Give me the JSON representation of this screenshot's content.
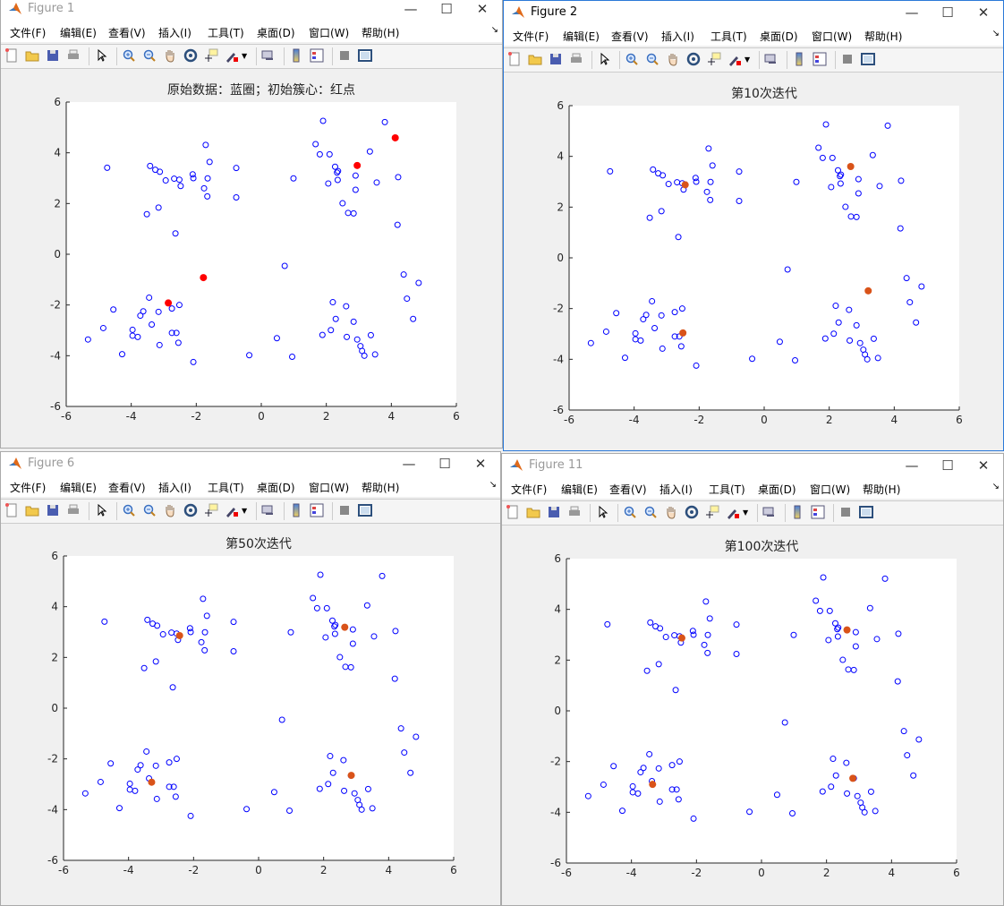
{
  "menu": [
    "文件(F)",
    "编辑(E)",
    "查看(V)",
    "插入(I)",
    "工具(T)",
    "桌面(D)",
    "窗口(W)",
    "帮助(H)"
  ],
  "toolbar_icons": [
    "new-file-icon",
    "open-folder-icon",
    "save-icon",
    "print-icon",
    "|",
    "pointer-icon",
    "|",
    "zoom-in-icon",
    "zoom-out-icon",
    "pan-hand-icon",
    "rotate-3d-icon",
    "data-cursor-icon",
    "brush-icon",
    "|",
    "link-plot-icon",
    "|",
    "colorbar-icon",
    "legend-icon",
    "|",
    "hide-plot-tools-icon",
    "show-plot-tools-icon"
  ],
  "axes": {
    "xlim": [
      -6,
      6
    ],
    "ylim": [
      -6,
      6
    ],
    "xticks": [
      "-6",
      "-4",
      "-2",
      "0",
      "2",
      "4",
      "6"
    ],
    "yticks": [
      "-6",
      "-4",
      "-2",
      "0",
      "2",
      "4",
      "6"
    ]
  },
  "colors": {
    "data_points": "#0000ff",
    "initial_centroids": "#ff0000",
    "centroids": "#d95319"
  },
  "points": [
    [
      -4.74,
      3.41
    ],
    [
      -1.71,
      4.31
    ],
    [
      -1.59,
      3.64
    ],
    [
      -0.77,
      3.4
    ],
    [
      -3.42,
      3.48
    ],
    [
      -3.26,
      3.33
    ],
    [
      -3.12,
      3.25
    ],
    [
      -2.94,
      2.91
    ],
    [
      -2.68,
      2.98
    ],
    [
      -2.52,
      2.94
    ],
    [
      -2.48,
      2.69
    ],
    [
      -2.11,
      3.15
    ],
    [
      -2.09,
      3.0
    ],
    [
      -1.65,
      2.99
    ],
    [
      -1.76,
      2.6
    ],
    [
      -1.66,
      2.28
    ],
    [
      -0.77,
      2.24
    ],
    [
      -3.16,
      1.84
    ],
    [
      -3.52,
      1.58
    ],
    [
      -2.64,
      0.82
    ],
    [
      1.9,
      5.26
    ],
    [
      3.8,
      5.21
    ],
    [
      1.67,
      4.34
    ],
    [
      1.8,
      3.94
    ],
    [
      2.1,
      3.94
    ],
    [
      3.34,
      4.05
    ],
    [
      2.27,
      3.45
    ],
    [
      2.33,
      3.22
    ],
    [
      2.36,
      3.28
    ],
    [
      0.99,
      2.99
    ],
    [
      2.06,
      2.79
    ],
    [
      2.35,
      2.93
    ],
    [
      2.9,
      3.1
    ],
    [
      3.55,
      2.83
    ],
    [
      4.21,
      3.04
    ],
    [
      2.9,
      2.54
    ],
    [
      2.5,
      2.01
    ],
    [
      2.67,
      1.63
    ],
    [
      2.84,
      1.61
    ],
    [
      4.19,
      1.16
    ],
    [
      -5.33,
      -3.36
    ],
    [
      -4.86,
      -2.91
    ],
    [
      -4.55,
      -2.18
    ],
    [
      -4.28,
      -3.94
    ],
    [
      -3.96,
      -2.98
    ],
    [
      -3.96,
      -3.21
    ],
    [
      -3.8,
      -3.26
    ],
    [
      -3.72,
      -2.42
    ],
    [
      -3.63,
      -2.25
    ],
    [
      -3.45,
      -1.71
    ],
    [
      -3.37,
      -2.77
    ],
    [
      -3.16,
      -2.27
    ],
    [
      -3.13,
      -3.58
    ],
    [
      -2.75,
      -2.14
    ],
    [
      -2.52,
      -2.0
    ],
    [
      -2.75,
      -3.1
    ],
    [
      -2.61,
      -3.1
    ],
    [
      -2.55,
      -3.49
    ],
    [
      -2.09,
      -4.25
    ],
    [
      -0.37,
      -3.98
    ],
    [
      0.72,
      -0.46
    ],
    [
      0.48,
      -3.31
    ],
    [
      0.95,
      -4.04
    ],
    [
      2.2,
      -1.89
    ],
    [
      2.61,
      -2.05
    ],
    [
      2.29,
      -2.55
    ],
    [
      2.84,
      -2.66
    ],
    [
      2.14,
      -2.99
    ],
    [
      1.88,
      -3.18
    ],
    [
      2.63,
      -3.26
    ],
    [
      2.95,
      -3.36
    ],
    [
      3.05,
      -3.62
    ],
    [
      3.1,
      -3.81
    ],
    [
      3.17,
      -4.0
    ],
    [
      3.5,
      -3.95
    ],
    [
      3.37,
      -3.19
    ],
    [
      4.38,
      -0.8
    ],
    [
      4.84,
      -1.13
    ],
    [
      4.48,
      -1.75
    ],
    [
      4.67,
      -2.55
    ]
  ],
  "windows": [
    {
      "title": "Figure 1",
      "plot_title": "原始数据：蓝圈；初始簇心：红点",
      "active": false,
      "centroid_color": "#ff0000",
      "centroids": [
        [
          4.12,
          4.59
        ],
        [
          2.95,
          3.5
        ],
        [
          -2.86,
          -1.92
        ],
        [
          -1.78,
          -0.92
        ]
      ]
    },
    {
      "title": "Figure 2",
      "plot_title": "第10次迭代",
      "active": true,
      "centroid_color": "#d95319",
      "centroids": [
        [
          -2.43,
          2.88
        ],
        [
          2.66,
          3.6
        ],
        [
          3.2,
          -1.3
        ],
        [
          -2.5,
          -2.96
        ]
      ]
    },
    {
      "title": "Figure 6",
      "plot_title": "第50次迭代",
      "active": false,
      "centroid_color": "#d95319",
      "centroids": [
        [
          -2.43,
          2.86
        ],
        [
          2.65,
          3.19
        ],
        [
          2.85,
          -2.65
        ],
        [
          -3.29,
          -2.92
        ]
      ]
    },
    {
      "title": "Figure 11",
      "plot_title": "第100次迭代",
      "active": false,
      "centroid_color": "#d95319",
      "centroids": [
        [
          -2.45,
          2.87
        ],
        [
          2.63,
          3.19
        ],
        [
          2.81,
          -2.66
        ],
        [
          -3.35,
          -2.9
        ]
      ]
    }
  ]
}
